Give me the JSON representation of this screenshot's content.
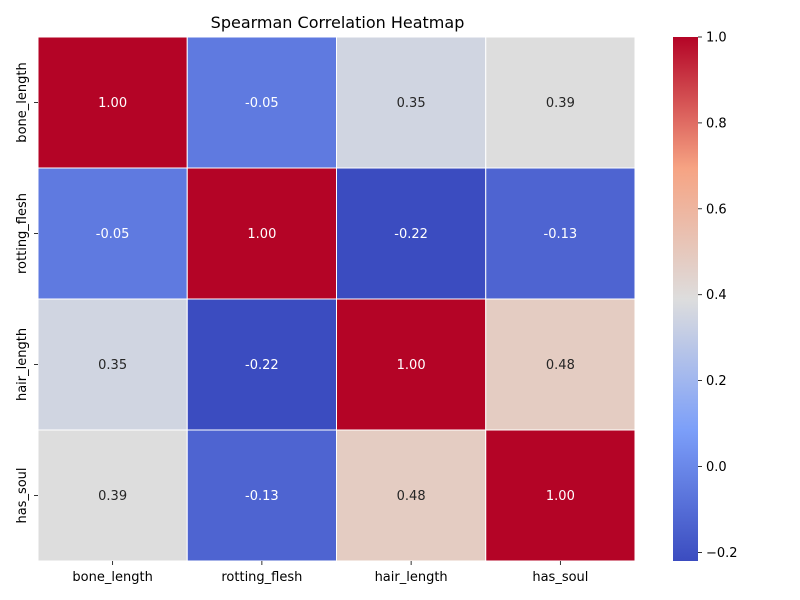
{
  "chart_data": {
    "type": "heatmap",
    "title": "Spearman Correlation Heatmap",
    "x_labels": [
      "bone_length",
      "rotting_flesh",
      "hair_length",
      "has_soul"
    ],
    "y_labels": [
      "bone_length",
      "rotting_flesh",
      "hair_length",
      "has_soul"
    ],
    "values": [
      [
        1.0,
        -0.05,
        0.35,
        0.39
      ],
      [
        -0.05,
        1.0,
        -0.22,
        -0.13
      ],
      [
        0.35,
        -0.22,
        1.0,
        0.48
      ],
      [
        0.39,
        -0.13,
        0.48,
        1.0
      ]
    ],
    "annotations": [
      [
        "1.00",
        "-0.05",
        "0.35",
        "0.39"
      ],
      [
        "-0.05",
        "1.00",
        "-0.22",
        "-0.13"
      ],
      [
        "0.35",
        "-0.22",
        "1.00",
        "0.48"
      ],
      [
        "0.39",
        "-0.13",
        "0.48",
        "1.00"
      ]
    ],
    "colormap": "coolwarm",
    "vmin": -0.22,
    "vmax": 1.0,
    "colorbar_ticks": [
      -0.2,
      0.0,
      0.2,
      0.4,
      0.6,
      0.8,
      1.0
    ],
    "colorbar_tick_labels": [
      "−0.2",
      "0.0",
      "0.2",
      "0.4",
      "0.6",
      "0.8",
      "1.0"
    ],
    "xlabel": "",
    "ylabel": ""
  }
}
